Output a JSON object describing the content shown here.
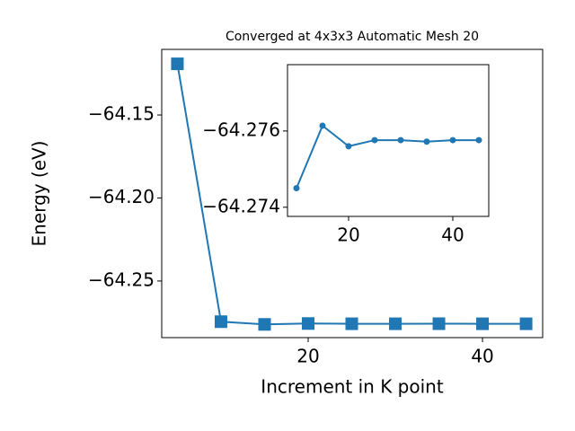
{
  "chart_data": [
    {
      "type": "line",
      "title": "Converged at 4x3x3 Automatic Mesh 20",
      "x_label": "Increment in K point",
      "y_label": "Energy (eV)",
      "x": [
        5,
        10,
        15,
        20,
        25,
        30,
        35,
        40,
        45
      ],
      "series": [
        {
          "color": "#1f77b4",
          "marker": "square",
          "values": [
            -64.1192,
            -64.2745,
            -64.27614,
            -64.2756,
            -64.27576,
            -64.27576,
            -64.27572,
            -64.27576,
            -64.27576
          ]
        }
      ],
      "xlim": [
        3.2,
        46.9
      ],
      "ylim": [
        -64.2841,
        -64.1105
      ],
      "xticks": [
        20,
        40
      ],
      "yticks": [
        {
          "value": -64.25,
          "label": "−64.25"
        },
        {
          "value": -64.2,
          "label": "−64.20"
        },
        {
          "value": -64.15,
          "label": "−64.15"
        }
      ]
    },
    {
      "type": "line",
      "x": [
        10,
        15,
        20,
        25,
        30,
        35,
        40,
        45
      ],
      "series": [
        {
          "color": "#1f77b4",
          "marker": "circle",
          "values": [
            -64.2745,
            -64.27614,
            -64.2756,
            -64.27576,
            -64.27576,
            -64.27572,
            -64.27576,
            -64.27576
          ]
        }
      ],
      "xlim": [
        8.28,
        46.9
      ],
      "ylim": [
        -64.27376,
        -64.27774
      ],
      "xticks": [
        20,
        40
      ],
      "yticks": [
        {
          "value": -64.274,
          "label": "−64.274"
        },
        {
          "value": -64.276,
          "label": "−64.276"
        }
      ]
    }
  ]
}
